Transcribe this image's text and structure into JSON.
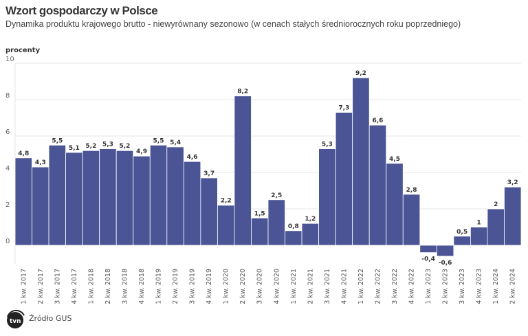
{
  "title": "Wzort gospodarczy w Polsce",
  "subtitle": "Dynamika produktu krajowego brutto - niewyrównany sezonowo (w cenach stałych średniorocznych roku poprzedniego)",
  "source": "Źródło GUS",
  "logo_text": "tvn24",
  "chart_data": {
    "type": "bar",
    "ylabel": "procenty",
    "ylim": [
      -1,
      10
    ],
    "yticks": [
      0,
      2,
      4,
      6,
      8,
      10
    ],
    "grid": true,
    "bar_color": "#4b5595",
    "categories": [
      "1 kw. 2017",
      "2 kw. 2017",
      "3 kw. 2017",
      "4 kw. 2017",
      "1 kw. 2018",
      "2 kw. 2018",
      "3 kw. 2018",
      "4 kw. 2018",
      "1 kw. 2019",
      "2 kw. 2019",
      "3 kw. 2019",
      "4 kw. 2019",
      "1 kw. 2020",
      "2 kw. 2020",
      "3 kw. 2020",
      "4 kw. 2020",
      "1 kw. 2021",
      "2 kw. 2021",
      "3 kw. 2021",
      "4 kw. 2021",
      "1 kw. 2022",
      "2 kw. 2022",
      "3 kw. 2022",
      "4 kw. 2022",
      "1 kw. 2023",
      "2 kw. 2023",
      "3 kw. 2023",
      "4 kw. 2023",
      "1 kw. 2024",
      "2 kw. 2024"
    ],
    "values": [
      4.8,
      4.3,
      5.5,
      5.1,
      5.2,
      5.3,
      5.2,
      4.9,
      5.5,
      5.4,
      4.6,
      3.7,
      2.2,
      8.2,
      1.5,
      2.5,
      0.8,
      1.2,
      5.3,
      7.3,
      9.2,
      6.6,
      4.5,
      2.8,
      -0.4,
      -0.6,
      0.5,
      1,
      2,
      3.2
    ]
  }
}
